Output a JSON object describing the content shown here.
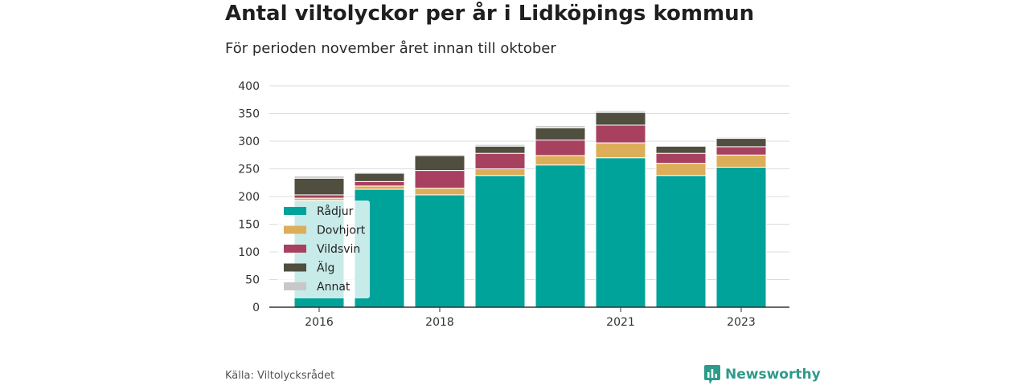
{
  "title": "Antal viltolyckor per år i Lidköpings kommun",
  "subtitle": "För perioden november året innan till oktober",
  "source": "Källa: Viltolycksrådet",
  "brand": {
    "name": "Newsworthy",
    "icon": "chart-logo-icon",
    "color": "#2e9a8a"
  },
  "chart_data": {
    "type": "bar",
    "stacked": true,
    "categories": [
      "2016",
      "2017",
      "2018",
      "2019",
      "2020",
      "2021",
      "2022",
      "2023"
    ],
    "x_tick_labels": [
      "2016",
      "",
      "2018",
      "",
      "",
      "2021",
      "",
      "2023"
    ],
    "ylim": [
      0,
      400
    ],
    "yticks": [
      0,
      50,
      100,
      150,
      200,
      250,
      300,
      350,
      400
    ],
    "grid": true,
    "legend_placement": "bottom-left",
    "series": [
      {
        "name": "Rådjur",
        "color": "#00a39a",
        "values": [
          193,
          213,
          203,
          238,
          257,
          270,
          238,
          253
        ]
      },
      {
        "name": "Dovhjort",
        "color": "#dcae5a",
        "values": [
          4,
          6,
          12,
          12,
          17,
          27,
          22,
          22
        ]
      },
      {
        "name": "Vildsvin",
        "color": "#a8415f",
        "values": [
          6,
          8,
          32,
          28,
          28,
          32,
          18,
          15
        ]
      },
      {
        "name": "Älg",
        "color": "#4f4e3f",
        "values": [
          30,
          15,
          27,
          13,
          22,
          23,
          13,
          15
        ]
      },
      {
        "name": "Annat",
        "color": "#c8c8c8",
        "values": [
          4,
          2,
          2,
          3,
          4,
          3,
          1,
          2
        ]
      }
    ]
  }
}
